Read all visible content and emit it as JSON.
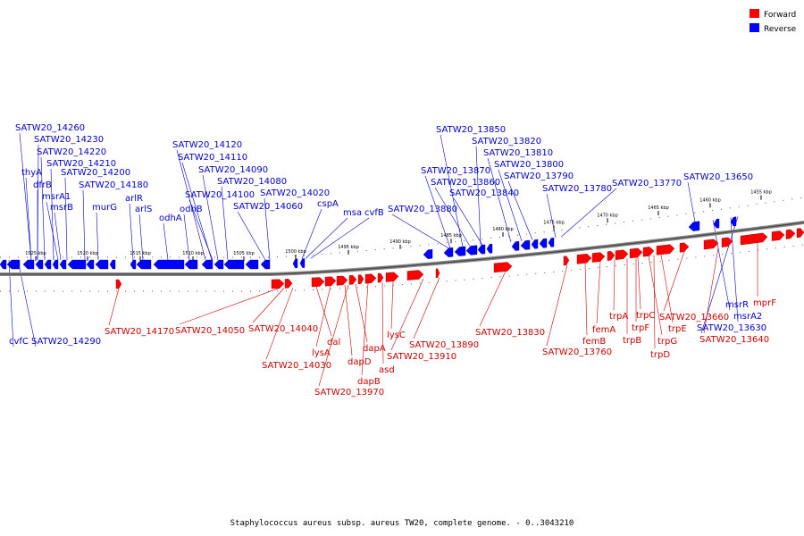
{
  "legend": {
    "forward": {
      "label": "Forward",
      "color": "#ff0000"
    },
    "reverse": {
      "label": "Reverse",
      "color": "#0000ff"
    }
  },
  "caption": "Staphylococcus aureus subsp. aureus TW20, complete genome. - 0..3043210",
  "ticks": [
    "1525 kbp",
    "1520 kbp",
    "1515 kbp",
    "1510 kbp",
    "1505 kbp",
    "1500 kbp",
    "1495 kbp",
    "1490 kbp",
    "1485 kbp",
    "1480 kbp",
    "1475 kbp",
    "1470 kbp",
    "1465 kbp",
    "1460 kbp",
    "1455 kbp"
  ],
  "reverse_labels": [
    "SATW20_14260",
    "SATW20_14230",
    "SATW20_14220",
    "SATW20_14210",
    "thyA",
    "SATW20_14200",
    "dfrB",
    "SATW20_14180",
    "msrA1",
    "msrB",
    "arlR",
    "murG",
    "arlS",
    "odhA",
    "SATW20_14120",
    "SATW20_14110",
    "SATW20_14090",
    "odhB",
    "SATW20_14080",
    "SATW20_14100",
    "SATW20_14020",
    "SATW20_14060",
    "cspA",
    "msa",
    "cvfB",
    "SATW20_13850",
    "SATW20_13820",
    "SATW20_13810",
    "SATW20_13800",
    "SATW20_13870",
    "SATW20_13790",
    "SATW20_13860",
    "SATW20_13780",
    "SATW20_13770",
    "SATW20_13650",
    "SATW20_13840",
    "SATW20_13880",
    "cvfC",
    "SATW20_14290",
    "msrR",
    "msrA2",
    "SATW20_13630"
  ],
  "forward_labels": [
    "SATW20_14170",
    "SATW20_14050",
    "SATW20_14040",
    "SATW20_14030",
    "dal",
    "lysA",
    "dapD",
    "dapA",
    "dapB",
    "asd",
    "lysC",
    "SATW20_13970",
    "SATW20_13910",
    "SATW20_13890",
    "SATW20_13830",
    "SATW20_13760",
    "femB",
    "femA",
    "trpA",
    "trpB",
    "trpF",
    "trpC",
    "trpG",
    "trpD",
    "trpE",
    "SATW20_13660",
    "SATW20_13640",
    "mprF"
  ]
}
